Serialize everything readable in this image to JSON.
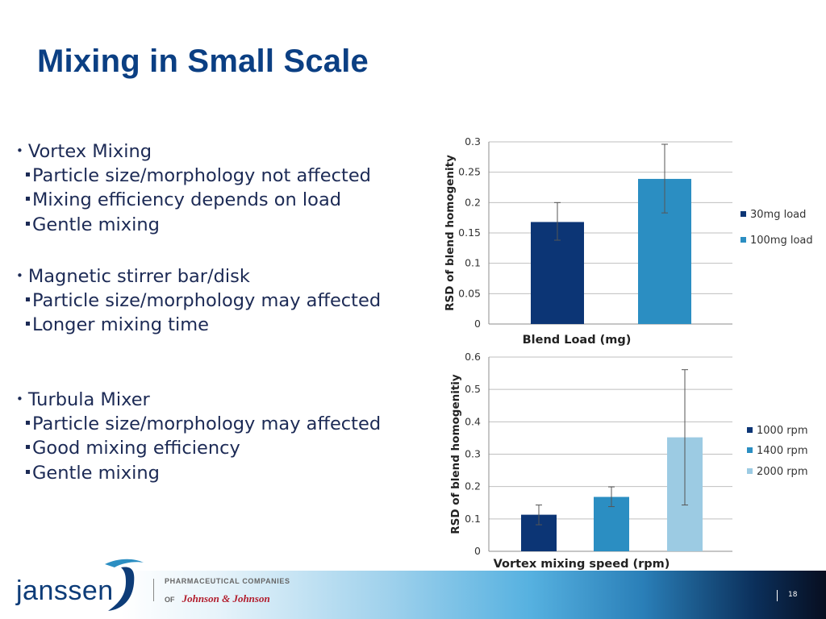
{
  "slide": {
    "title": "Mixing in Small Scale",
    "page_number": "18"
  },
  "bullets": [
    {
      "heading": "Vortex Mixing",
      "items": [
        "Particle size/morphology not affected",
        "Mixing efficiency depends on load",
        "Gentle mixing"
      ]
    },
    {
      "heading": "Magnetic stirrer bar/disk",
      "items": [
        "Particle size/morphology may affected",
        "Longer mixing time"
      ]
    },
    {
      "heading": "Turbula Mixer",
      "items": [
        "Particle size/morphology may affected",
        "Good mixing efficiency",
        "Gentle mixing"
      ]
    }
  ],
  "footer": {
    "logo_word": "janssen",
    "pharma_line": "PHARMACEUTICAL COMPANIES",
    "of_text": "OF",
    "jj_text": "Johnson & Johnson"
  },
  "chart_data": [
    {
      "type": "bar",
      "xlabel": "Blend Load (mg)",
      "ylabel": "RSD of blend homogenity",
      "ylim": [
        0,
        0.3
      ],
      "ticks": [
        0,
        0.05,
        0.1,
        0.15,
        0.2,
        0.25,
        0.3
      ],
      "grid": true,
      "legend": "right",
      "series": [
        {
          "name": "30mg load",
          "value": 0.168,
          "err_low": 0.138,
          "err_high": 0.2,
          "color": "#0c3575"
        },
        {
          "name": "100mg load",
          "value": 0.239,
          "err_low": 0.183,
          "err_high": 0.296,
          "color": "#2b8ec2"
        }
      ]
    },
    {
      "type": "bar",
      "xlabel": "Vortex mixing speed (rpm)",
      "ylabel": "RSD of blend homogenitiy",
      "ylim": [
        0,
        0.6
      ],
      "ticks": [
        0,
        0.1,
        0.2,
        0.3,
        0.4,
        0.5,
        0.6
      ],
      "grid": true,
      "legend": "right",
      "series": [
        {
          "name": "1000 rpm",
          "value": 0.113,
          "err_low": 0.082,
          "err_high": 0.143,
          "color": "#0c3575"
        },
        {
          "name": "1400 rpm",
          "value": 0.168,
          "err_low": 0.138,
          "err_high": 0.199,
          "color": "#2b8ec2"
        },
        {
          "name": "2000 rpm",
          "value": 0.352,
          "err_low": 0.143,
          "err_high": 0.561,
          "color": "#9ccbe3"
        }
      ]
    }
  ]
}
